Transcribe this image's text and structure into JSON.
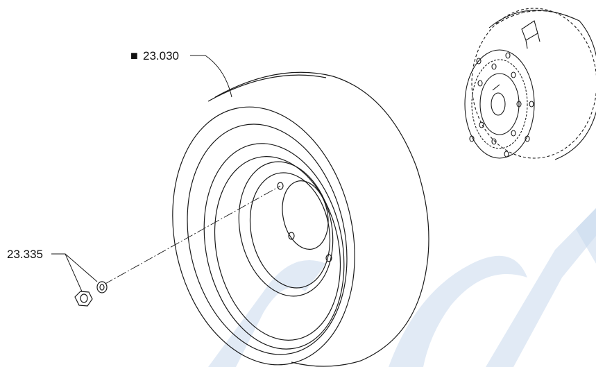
{
  "callouts": {
    "wheel_part": "23.030",
    "wheel_marker": "■",
    "nut_washer_part": "23.335"
  },
  "colors": {
    "line": "#1a1a1a",
    "watermark": "#c9d9ec",
    "background": "#ffffff"
  }
}
